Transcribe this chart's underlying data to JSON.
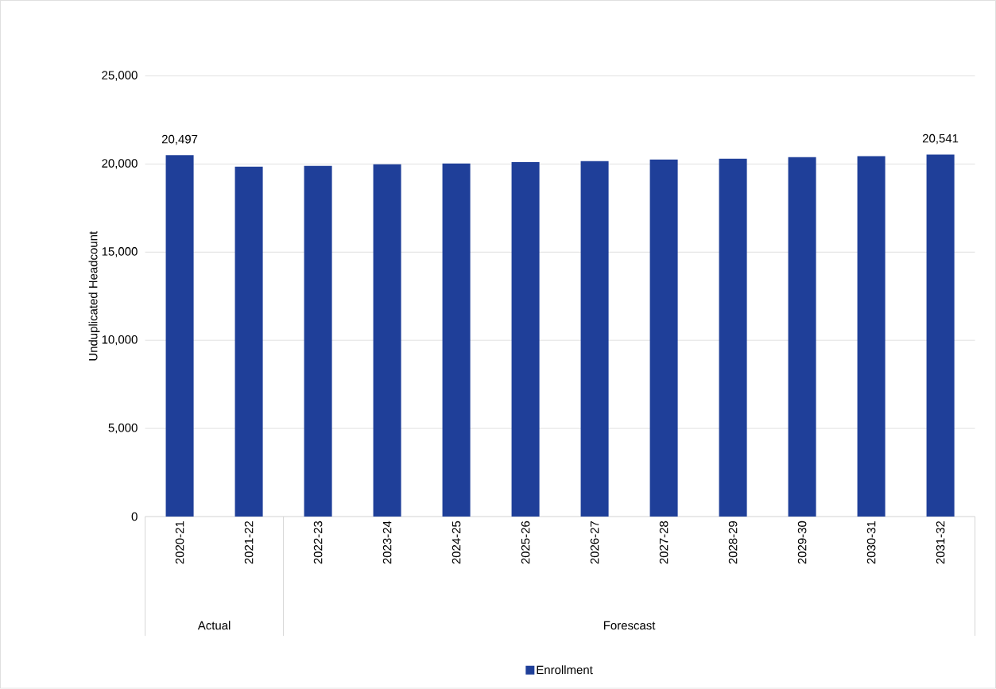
{
  "chart_data": {
    "type": "bar",
    "ylabel": "Unduplicated Headcount",
    "categories": [
      "2020-21",
      "2021-22",
      "2022-23",
      "2023-24",
      "2024-25",
      "2025-26",
      "2026-27",
      "2027-28",
      "2028-29",
      "2029-30",
      "2030-31",
      "2031-32"
    ],
    "series": [
      {
        "name": "Enrollment",
        "color": "#1f3f99",
        "values": [
          20497,
          19850,
          19890,
          19980,
          20030,
          20110,
          20160,
          20250,
          20300,
          20390,
          20440,
          20541
        ],
        "value_labels": [
          "20,497",
          null,
          null,
          null,
          null,
          null,
          null,
          null,
          null,
          null,
          null,
          "20,541"
        ]
      }
    ],
    "ylim": [
      0,
      25000
    ],
    "yticks": [
      {
        "value": 0,
        "label": "0"
      },
      {
        "value": 5000,
        "label": "5,000"
      },
      {
        "value": 10000,
        "label": "10,000"
      },
      {
        "value": 15000,
        "label": "15,000"
      },
      {
        "value": 20000,
        "label": "20,000"
      },
      {
        "value": 25000,
        "label": "25,000"
      }
    ],
    "grid": "y",
    "legend": "bottom",
    "annotations": [
      "Actual",
      "Forescast"
    ]
  }
}
